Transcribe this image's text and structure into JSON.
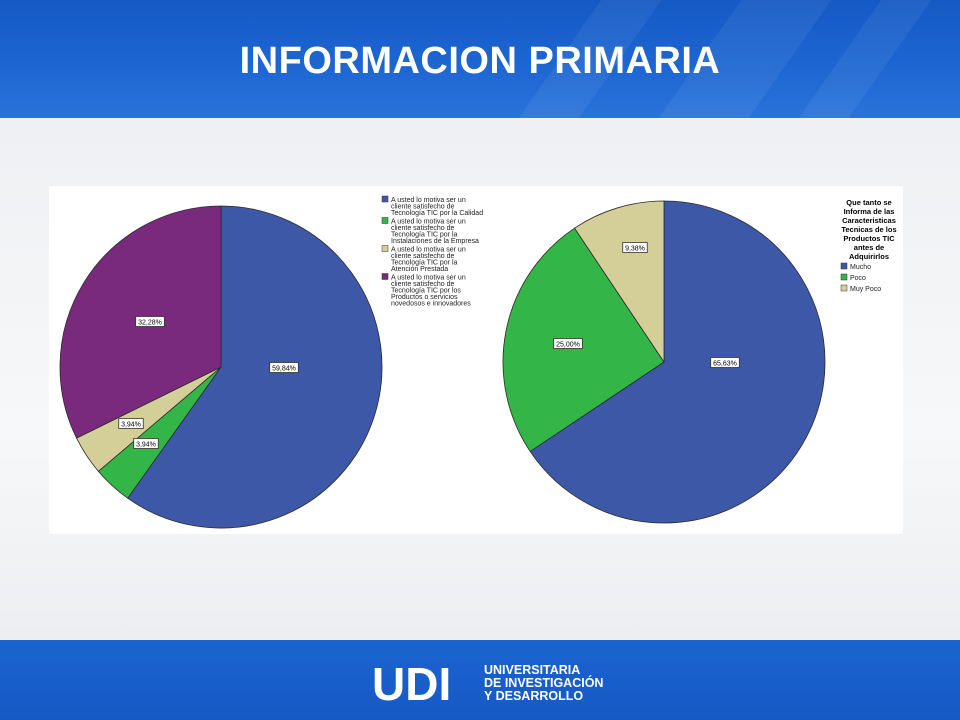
{
  "slide": {
    "title": "INFORMACION PRIMARIA",
    "logo": {
      "mark": "UDI",
      "lines": [
        "UNIVERSITARIA",
        "DE INVESTIGACIÓN",
        "Y DESARROLLO"
      ]
    }
  },
  "chart_data": [
    {
      "type": "pie",
      "title": "",
      "legend_position": "top-right",
      "slices": [
        {
          "label": "A usted lo motiva ser un cliente satisfecho de Tecnología TIC por la Calidad",
          "legend_lines": [
            "A usted lo motiva ser un",
            "cliente satisfecho de",
            "Tecnología TIC por la Calidad"
          ],
          "value": 59.84,
          "value_label": "59,84%",
          "color": "#3c58a7"
        },
        {
          "label": "A usted lo motiva ser un cliente satisfecho de Tecnología TIC por la Instalaciones de la Empresa",
          "legend_lines": [
            "A usted lo motiva ser un",
            "cliente satisfecho de",
            "Tecnología TIC por la",
            "Instalaciones de la Empresa"
          ],
          "value": 3.94,
          "value_label": "3,94%",
          "color": "#33b548"
        },
        {
          "label": "A usted lo motiva ser un cliente satisfecho de Tecnología TIC por la Atención Prestada",
          "legend_lines": [
            "A usted lo motiva ser un",
            "cliente satisfecho de",
            "Tecnología TIC por la",
            "Atención Prestada"
          ],
          "value": 3.94,
          "value_label": "3,94%",
          "color": "#d4cf99"
        },
        {
          "label": "A usted lo motiva ser un cliente satisfecho de Tecnología TIC por los Productos o servicios novedosos e innovadores",
          "legend_lines": [
            "A usted lo motiva ser un",
            "cliente satisfecho de",
            "Tecnología TIC por los",
            "Productos o servicios",
            "novedosos e innovadores"
          ],
          "value": 32.28,
          "value_label": "32,28%",
          "color": "#7a2a7c"
        }
      ]
    },
    {
      "type": "pie",
      "title": "Que tanto se Informa de las Caracteristicas Tecnicas de los Productos TIC antes de Adquirirlos",
      "title_lines": [
        "Que tanto se",
        "Informa de las",
        "Caracteristicas",
        "Tecnicas de los",
        "Productos TIC",
        "antes de",
        "Adquirirlos"
      ],
      "legend_position": "top-right",
      "slices": [
        {
          "label": "Mucho",
          "legend_lines": [
            "Mucho"
          ],
          "value": 65.63,
          "value_label": "65,63%",
          "color": "#3c58a7"
        },
        {
          "label": "Poco",
          "legend_lines": [
            "Poco"
          ],
          "value": 25.0,
          "value_label": "25,00%",
          "color": "#33b548"
        },
        {
          "label": "Muy Poco",
          "legend_lines": [
            "Muy Poco"
          ],
          "value": 9.38,
          "value_label": "9,38%",
          "color": "#d4cf99"
        }
      ]
    }
  ]
}
